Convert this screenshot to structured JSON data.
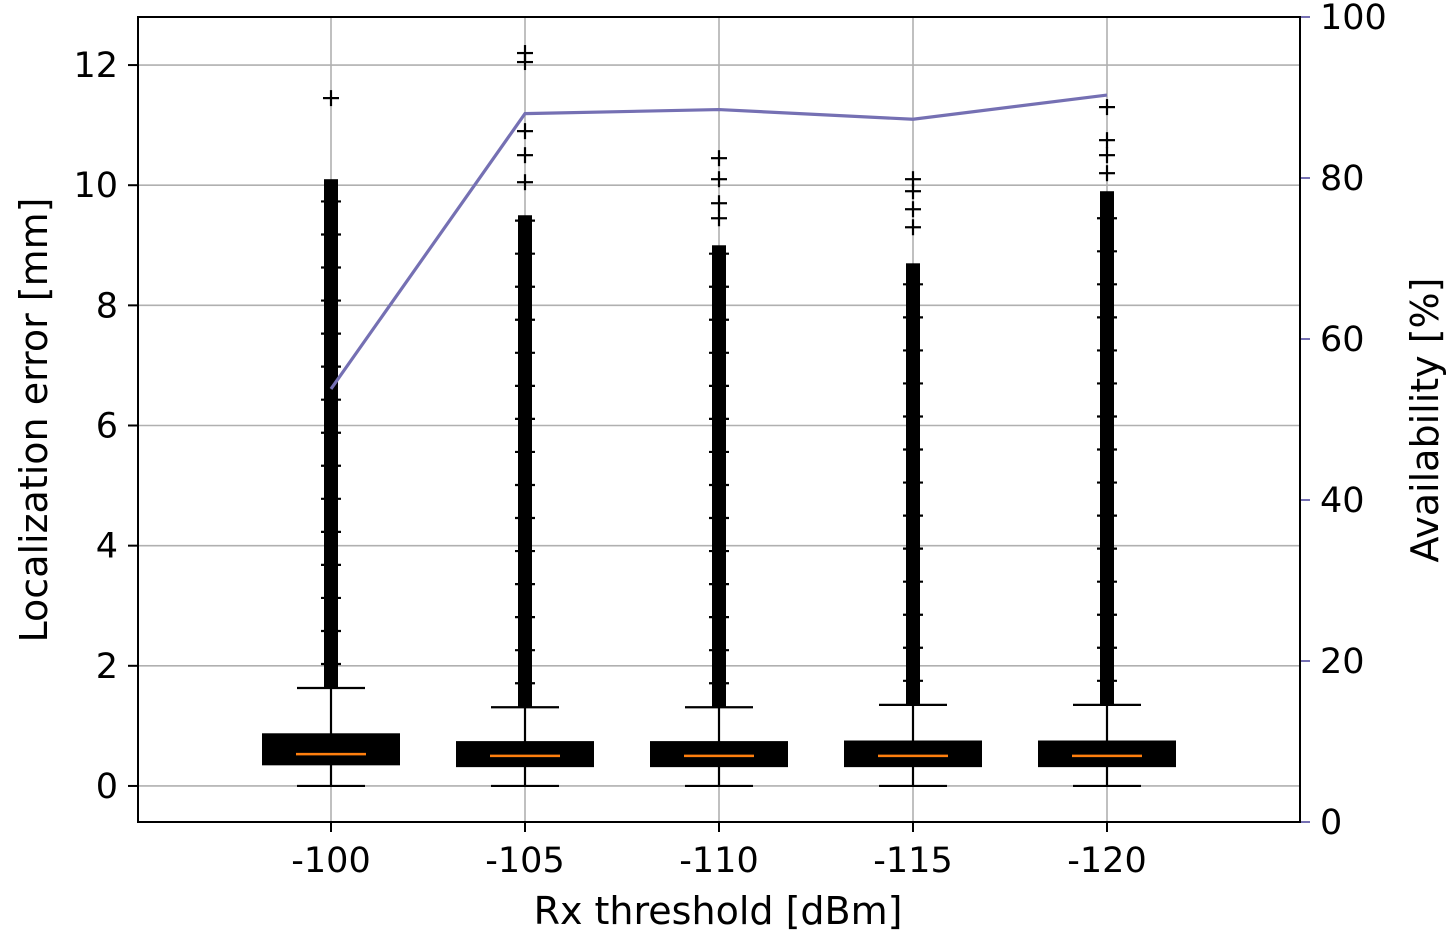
{
  "chart_data": {
    "type": "box",
    "x_categories": [
      "-100",
      "-105",
      "-110",
      "-115",
      "-120"
    ],
    "xlabel": "Rx threshold [dBm]",
    "ylabel": "Localization error [mm]",
    "y2label": "Availability [%]",
    "ylim": [
      -0.6,
      12.8
    ],
    "y2lim": [
      0,
      100
    ],
    "yticks": [
      "0",
      "2",
      "4",
      "6",
      "8",
      "10",
      "12"
    ],
    "y2ticks": [
      "0",
      "20",
      "40",
      "60",
      "80",
      "100"
    ],
    "grid": true,
    "colors": {
      "box": "#000000",
      "median": "#ff7f0e",
      "availability": "#7570b3"
    },
    "boxes": [
      {
        "category": "-100",
        "min": 0.0,
        "q1": 0.36,
        "median": 0.53,
        "q3": 0.86,
        "max": 1.63,
        "fliers_from": 1.63,
        "fliers_to": 10.1,
        "sparse_fliers": [
          11.45
        ]
      },
      {
        "category": "-105",
        "min": 0.0,
        "q1": 0.33,
        "median": 0.5,
        "q3": 0.73,
        "max": 1.31,
        "fliers_from": 1.31,
        "fliers_to": 9.5,
        "sparse_fliers": [
          10.05,
          10.5,
          10.9,
          12.05,
          12.2
        ]
      },
      {
        "category": "-110",
        "min": 0.0,
        "q1": 0.33,
        "median": 0.5,
        "q3": 0.73,
        "max": 1.31,
        "fliers_from": 1.31,
        "fliers_to": 9.0,
        "sparse_fliers": [
          9.45,
          9.7,
          10.1,
          10.45
        ]
      },
      {
        "category": "-115",
        "min": 0.0,
        "q1": 0.33,
        "median": 0.5,
        "q3": 0.74,
        "max": 1.35,
        "fliers_from": 1.35,
        "fliers_to": 8.7,
        "sparse_fliers": [
          9.3,
          9.6,
          9.9,
          10.1
        ]
      },
      {
        "category": "-120",
        "min": 0.0,
        "q1": 0.33,
        "median": 0.5,
        "q3": 0.74,
        "max": 1.35,
        "fliers_from": 1.35,
        "fliers_to": 9.9,
        "sparse_fliers": [
          10.2,
          10.5,
          10.75,
          11.3
        ]
      }
    ],
    "availability_series": {
      "values": [
        53.8,
        88.0,
        88.5,
        87.3,
        90.3
      ]
    }
  }
}
